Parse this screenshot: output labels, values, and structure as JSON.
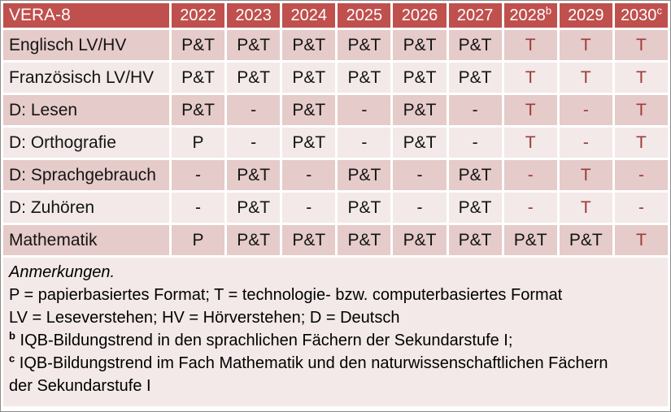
{
  "colors": {
    "header_bg": "#C0504D",
    "header_text": "#FFFFFF",
    "band_dark": "#E5CBC9",
    "band_light": "#F2E9E8",
    "accent_text": "#9E3B38"
  },
  "table": {
    "title": "VERA-8",
    "columns": [
      {
        "label": "2022",
        "sup": ""
      },
      {
        "label": "2023",
        "sup": ""
      },
      {
        "label": "2024",
        "sup": ""
      },
      {
        "label": "2025",
        "sup": ""
      },
      {
        "label": "2026",
        "sup": ""
      },
      {
        "label": "2027",
        "sup": ""
      },
      {
        "label": "2028",
        "sup": "b"
      },
      {
        "label": "2029",
        "sup": ""
      },
      {
        "label": "2030",
        "sup": "c"
      }
    ],
    "rows": [
      {
        "label": "Englisch LV/HV",
        "cells": [
          {
            "text": "P&T",
            "red": false
          },
          {
            "text": "P&T",
            "red": false
          },
          {
            "text": "P&T",
            "red": false
          },
          {
            "text": "P&T",
            "red": false
          },
          {
            "text": "P&T",
            "red": false
          },
          {
            "text": "P&T",
            "red": false
          },
          {
            "text": "T",
            "red": true
          },
          {
            "text": "T",
            "red": true
          },
          {
            "text": "T",
            "red": true
          }
        ]
      },
      {
        "label": "Französisch LV/HV",
        "cells": [
          {
            "text": "P&T",
            "red": false
          },
          {
            "text": "P&T",
            "red": false
          },
          {
            "text": "P&T",
            "red": false
          },
          {
            "text": "P&T",
            "red": false
          },
          {
            "text": "P&T",
            "red": false
          },
          {
            "text": "P&T",
            "red": false
          },
          {
            "text": "T",
            "red": true
          },
          {
            "text": "T",
            "red": true
          },
          {
            "text": "T",
            "red": true
          }
        ]
      },
      {
        "label": "D: Lesen",
        "cells": [
          {
            "text": "P&T",
            "red": false
          },
          {
            "text": "-",
            "red": false
          },
          {
            "text": "P&T",
            "red": false
          },
          {
            "text": "-",
            "red": false
          },
          {
            "text": "P&T",
            "red": false
          },
          {
            "text": "-",
            "red": false
          },
          {
            "text": "T",
            "red": true
          },
          {
            "text": "-",
            "red": true
          },
          {
            "text": "T",
            "red": true
          }
        ]
      },
      {
        "label": "D: Orthografie",
        "cells": [
          {
            "text": "P",
            "red": false
          },
          {
            "text": "-",
            "red": false
          },
          {
            "text": "P&T",
            "red": false
          },
          {
            "text": "-",
            "red": false
          },
          {
            "text": "P&T",
            "red": false
          },
          {
            "text": "-",
            "red": false
          },
          {
            "text": "T",
            "red": true
          },
          {
            "text": "-",
            "red": true
          },
          {
            "text": "T",
            "red": true
          }
        ]
      },
      {
        "label": "D: Sprachgebrauch",
        "cells": [
          {
            "text": "-",
            "red": false
          },
          {
            "text": "P&T",
            "red": false
          },
          {
            "text": "-",
            "red": false
          },
          {
            "text": "P&T",
            "red": false
          },
          {
            "text": "-",
            "red": false
          },
          {
            "text": "P&T",
            "red": false
          },
          {
            "text": "-",
            "red": true
          },
          {
            "text": "T",
            "red": true
          },
          {
            "text": "-",
            "red": true
          }
        ]
      },
      {
        "label": "D: Zuhören",
        "cells": [
          {
            "text": "-",
            "red": false
          },
          {
            "text": "P&T",
            "red": false
          },
          {
            "text": "-",
            "red": false
          },
          {
            "text": "P&T",
            "red": false
          },
          {
            "text": "-",
            "red": false
          },
          {
            "text": "P&T",
            "red": false
          },
          {
            "text": "-",
            "red": true
          },
          {
            "text": "T",
            "red": true
          },
          {
            "text": "-",
            "red": true
          }
        ]
      },
      {
        "label": "Mathematik",
        "cells": [
          {
            "text": "P",
            "red": false
          },
          {
            "text": "P&T",
            "red": false
          },
          {
            "text": "P&T",
            "red": false
          },
          {
            "text": "P&T",
            "red": false
          },
          {
            "text": "P&T",
            "red": false
          },
          {
            "text": "P&T",
            "red": false
          },
          {
            "text": "P&T",
            "red": false
          },
          {
            "text": "P&T",
            "red": false
          },
          {
            "text": "T",
            "red": true
          }
        ]
      }
    ]
  },
  "notes": {
    "heading": "Anmerkungen.",
    "formats": "P = papierbasiertes Format; T = technologie- bzw. computerbasiertes Format",
    "abbreviations": "LV = Leseverstehen; HV = Hörverstehen; D = Deutsch",
    "fn_b": {
      "sup": "b",
      "text": "IQB-Bildungstrend in den sprachlichen Fächern der Sekundarstufe I;"
    },
    "fn_c": {
      "sup": "c",
      "text": "IQB-Bildungstrend im Fach Mathematik und den naturwissenschaftlichen Fächern der Sekundarstufe I"
    }
  }
}
